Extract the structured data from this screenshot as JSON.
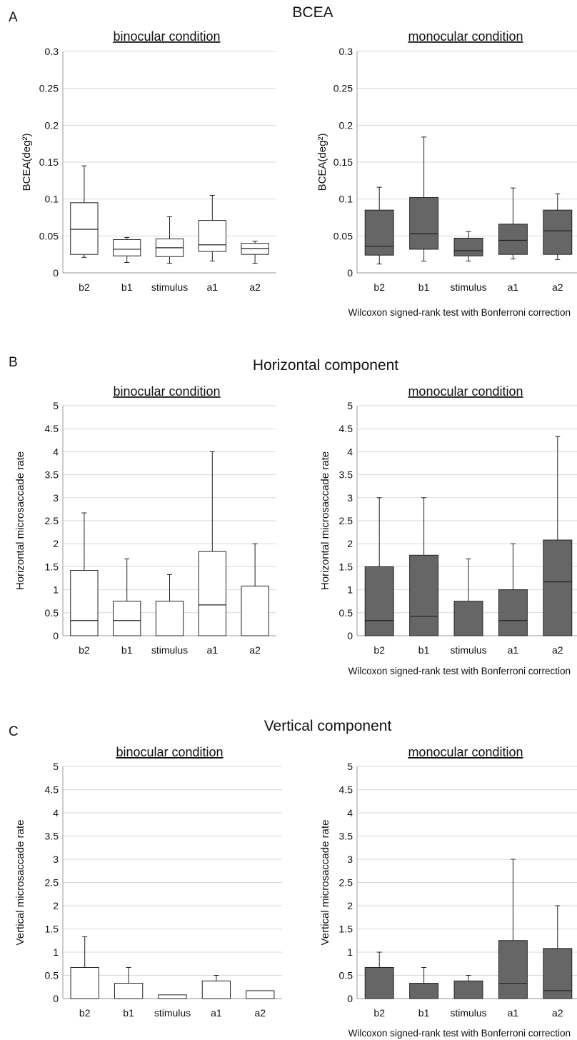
{
  "sections": [
    {
      "letter": "A",
      "title": "BCEA"
    },
    {
      "letter": "B",
      "title": "Horizontal component"
    },
    {
      "letter": "C",
      "title": "Vertical component"
    }
  ],
  "colors": {
    "binocular_fill": "#ffffff",
    "monocular_fill": "#666666",
    "grid": "#d9d9d9",
    "axis": "#9a9a9a",
    "stroke": "#222222"
  },
  "chart_data": [
    {
      "type": "box",
      "section": "A",
      "panel": "binocular condition",
      "title": "binocular condition",
      "xlabel": "",
      "ylabel": "BCEA(deg²)",
      "categories": [
        "b2",
        "b1",
        "stimulus",
        "a1",
        "a2"
      ],
      "ylim": [
        0,
        0.3
      ],
      "yticks": [
        "0",
        "0.05",
        "0.1",
        "0.15",
        "0.2",
        "0.25",
        "0.3"
      ],
      "grid": true,
      "fill": "#ffffff",
      "boxes": [
        {
          "min": 0.021,
          "q1": 0.025,
          "median": 0.059,
          "q3": 0.095,
          "max": 0.145
        },
        {
          "min": 0.014,
          "q1": 0.023,
          "median": 0.032,
          "q3": 0.045,
          "max": 0.048
        },
        {
          "min": 0.013,
          "q1": 0.022,
          "median": 0.034,
          "q3": 0.046,
          "max": 0.076
        },
        {
          "min": 0.016,
          "q1": 0.029,
          "median": 0.038,
          "q3": 0.071,
          "max": 0.105
        },
        {
          "min": 0.013,
          "q1": 0.025,
          "median": 0.033,
          "q3": 0.04,
          "max": 0.043
        }
      ]
    },
    {
      "type": "box",
      "section": "A",
      "panel": "monocular condition",
      "title": "monocular condition",
      "xlabel": "",
      "ylabel": "BCEA(deg²)",
      "categories": [
        "b2",
        "b1",
        "stimulus",
        "a1",
        "a2"
      ],
      "ylim": [
        0,
        0.3
      ],
      "yticks": [
        "0",
        "0.05",
        "0.1",
        "0.15",
        "0.2",
        "0.25",
        "0.3"
      ],
      "grid": true,
      "fill": "#666666",
      "note": "Wilcoxon signed-rank test with Bonferroni correction",
      "boxes": [
        {
          "min": 0.012,
          "q1": 0.024,
          "median": 0.036,
          "q3": 0.085,
          "max": 0.116
        },
        {
          "min": 0.016,
          "q1": 0.032,
          "median": 0.053,
          "q3": 0.102,
          "max": 0.184
        },
        {
          "min": 0.016,
          "q1": 0.023,
          "median": 0.03,
          "q3": 0.047,
          "max": 0.056
        },
        {
          "min": 0.019,
          "q1": 0.025,
          "median": 0.044,
          "q3": 0.066,
          "max": 0.115
        },
        {
          "min": 0.018,
          "q1": 0.025,
          "median": 0.057,
          "q3": 0.085,
          "max": 0.107
        }
      ]
    },
    {
      "type": "box",
      "section": "B",
      "panel": "binocular condition",
      "title": "binocular condition",
      "xlabel": "",
      "ylabel": "Horizontal microsaccade rate",
      "categories": [
        "b2",
        "b1",
        "stimulus",
        "a1",
        "a2"
      ],
      "ylim": [
        0,
        5
      ],
      "yticks": [
        "0",
        "0.5",
        "1",
        "1.5",
        "2",
        "2.5",
        "3",
        "3.5",
        "4",
        "4.5",
        "5"
      ],
      "grid": true,
      "fill": "#ffffff",
      "boxes": [
        {
          "min": 0,
          "q1": 0,
          "median": 0.33,
          "q3": 1.42,
          "max": 2.67
        },
        {
          "min": 0,
          "q1": 0,
          "median": 0.33,
          "q3": 0.75,
          "max": 1.67
        },
        {
          "min": 0,
          "q1": 0,
          "median": 0,
          "q3": 0.75,
          "max": 1.33
        },
        {
          "min": 0,
          "q1": 0,
          "median": 0.67,
          "q3": 1.83,
          "max": 4.0
        },
        {
          "min": 0,
          "q1": 0,
          "median": 0,
          "q3": 1.08,
          "max": 2.0
        }
      ]
    },
    {
      "type": "box",
      "section": "B",
      "panel": "monocular condition",
      "title": "monocular condition",
      "xlabel": "",
      "ylabel": "Horizontal microsaccade rate",
      "categories": [
        "b2",
        "b1",
        "stimulus",
        "a1",
        "a2"
      ],
      "ylim": [
        0,
        5
      ],
      "yticks": [
        "0",
        "0.5",
        "1",
        "1.5",
        "2",
        "2.5",
        "3",
        "3.5",
        "4",
        "4.5",
        "5"
      ],
      "grid": true,
      "fill": "#666666",
      "note": "Wilcoxon signed-rank test with Bonferroni correction",
      "boxes": [
        {
          "min": 0,
          "q1": 0,
          "median": 0.33,
          "q3": 1.5,
          "max": 3.0
        },
        {
          "min": 0,
          "q1": 0,
          "median": 0.42,
          "q3": 1.75,
          "max": 3.0
        },
        {
          "min": 0,
          "q1": 0,
          "median": 0,
          "q3": 0.75,
          "max": 1.67
        },
        {
          "min": 0,
          "q1": 0,
          "median": 0.33,
          "q3": 1.0,
          "max": 2.0
        },
        {
          "min": 0,
          "q1": 0,
          "median": 1.17,
          "q3": 2.08,
          "max": 4.33
        }
      ]
    },
    {
      "type": "box",
      "section": "C",
      "panel": "binocular condition",
      "title": "binocular condition",
      "xlabel": "",
      "ylabel": "Vertical microsaccade rate",
      "categories": [
        "b2",
        "b1",
        "stimulus",
        "a1",
        "a2"
      ],
      "ylim": [
        0,
        5
      ],
      "yticks": [
        "0",
        "0.5",
        "1",
        "1.5",
        "2",
        "2.5",
        "3",
        "3.5",
        "4",
        "4.5",
        "5"
      ],
      "grid": true,
      "fill": "#ffffff",
      "boxes": [
        {
          "min": 0,
          "q1": 0,
          "median": 0,
          "q3": 0.67,
          "max": 1.33
        },
        {
          "min": 0,
          "q1": 0,
          "median": 0,
          "q3": 0.33,
          "max": 0.67
        },
        {
          "min": 0,
          "q1": 0,
          "median": 0,
          "q3": 0.08,
          "max": 0.08
        },
        {
          "min": 0,
          "q1": 0,
          "median": 0,
          "q3": 0.38,
          "max": 0.5
        },
        {
          "min": 0,
          "q1": 0,
          "median": 0,
          "q3": 0.17,
          "max": 0.17
        }
      ]
    },
    {
      "type": "box",
      "section": "C",
      "panel": "monocular condition",
      "title": "monocular condition",
      "xlabel": "",
      "ylabel": "Vertical microsaccade rate",
      "categories": [
        "b2",
        "b1",
        "stimulus",
        "a1",
        "a2"
      ],
      "ylim": [
        0,
        5
      ],
      "yticks": [
        "0",
        "0.5",
        "1",
        "1.5",
        "2",
        "2.5",
        "3",
        "3.5",
        "4",
        "4.5",
        "5"
      ],
      "grid": true,
      "fill": "#666666",
      "note": "Wilcoxon signed-rank test with Bonferroni correction",
      "boxes": [
        {
          "min": 0,
          "q1": 0,
          "median": 0,
          "q3": 0.67,
          "max": 1.0
        },
        {
          "min": 0,
          "q1": 0,
          "median": 0,
          "q3": 0.33,
          "max": 0.67
        },
        {
          "min": 0,
          "q1": 0,
          "median": 0,
          "q3": 0.38,
          "max": 0.5
        },
        {
          "min": 0,
          "q1": 0,
          "median": 0.33,
          "q3": 1.25,
          "max": 3.0
        },
        {
          "min": 0,
          "q1": 0,
          "median": 0.17,
          "q3": 1.08,
          "max": 2.0
        }
      ]
    }
  ]
}
